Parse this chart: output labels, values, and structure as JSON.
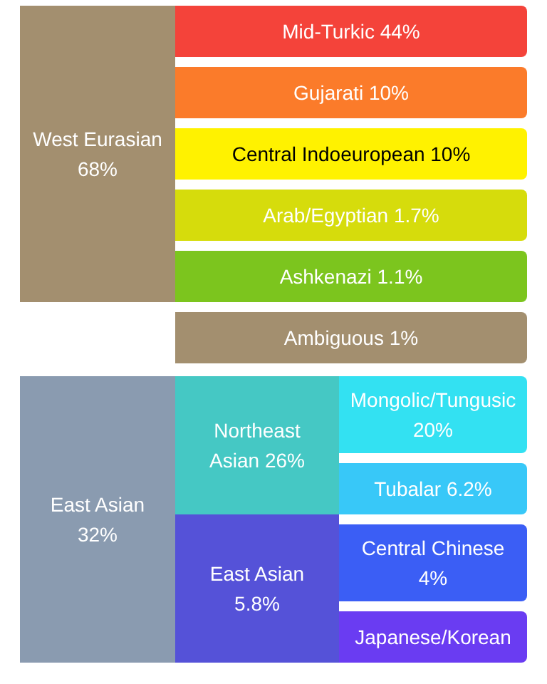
{
  "chart_data": {
    "type": "other",
    "categories": [
      "West Eurasian",
      "Mid-Turkic",
      "Gujarati",
      "Central Indoeuropean",
      "Arab/Egyptian",
      "Ashkenazi",
      "Ambiguous",
      "East Asian",
      "Northeast Asian",
      "Mongolic/Tungusic",
      "Tubalar",
      "East Asian",
      "Central Chinese",
      "Japanese/Korean"
    ],
    "values": [
      68,
      44,
      10,
      10,
      1.7,
      1.1,
      1,
      32,
      26,
      20,
      6.2,
      5.8,
      4,
      null
    ],
    "value_labels": [
      "68%",
      "44%",
      "10%",
      "10%",
      "1.7%",
      "1.1%",
      "1%",
      "32%",
      "26%",
      "20%",
      "6.2%",
      "5.8%",
      "4%",
      null
    ],
    "colors": [
      "#a38f6f",
      "#f4433a",
      "#fb7b2a",
      "#fff200",
      "#d6dc0c",
      "#7cc51e",
      "#a38f6f",
      "#8a9bb0",
      "#45c8c4",
      "#33e1f2",
      "#38c8f8",
      "#5552d8",
      "#3b5ef5",
      "#6a3cf2"
    ]
  }
}
